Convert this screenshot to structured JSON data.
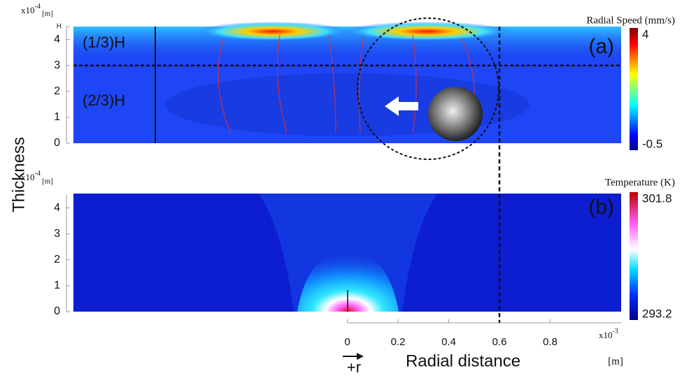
{
  "chart_data": [
    {
      "type": "heatmap",
      "panel": "(a)",
      "ylabel": "Thickness",
      "y_scale": {
        "base": "x10",
        "exponent": "-4",
        "unit": "[m]"
      },
      "ylim": [
        0,
        4.5
      ],
      "yticks": [
        0,
        1,
        2,
        3,
        4,
        {
          "value": 4.5,
          "label": "H"
        }
      ],
      "annotations": [
        "(1/3)H",
        "(2/3)H"
      ],
      "divider_y": 3,
      "colorbar": {
        "title": "Radial Speed (mm/s)",
        "clim": [
          -0.5,
          4
        ],
        "ticks": [
          4,
          -0.5
        ]
      }
    },
    {
      "type": "heatmap",
      "panel": "(b)",
      "y_scale": {
        "base": "x10",
        "exponent": "-4",
        "unit": "[m]"
      },
      "ylim": [
        0,
        4.5
      ],
      "yticks": [
        0,
        1,
        2,
        3,
        4
      ],
      "xlim": [
        -1.08,
        1.08
      ],
      "xticks": [
        0,
        0.2,
        0.4,
        0.6,
        0.8
      ],
      "x_scale": {
        "base": "x10",
        "exponent": "-3",
        "unit": "[m]"
      },
      "xlabel": "Radial distance",
      "direction_label": "+r",
      "marker_x": 0.6,
      "colorbar": {
        "title": "Temperature (K)",
        "clim": [
          293.2,
          301.8
        ],
        "ticks": [
          301.8,
          293.2
        ]
      }
    }
  ]
}
